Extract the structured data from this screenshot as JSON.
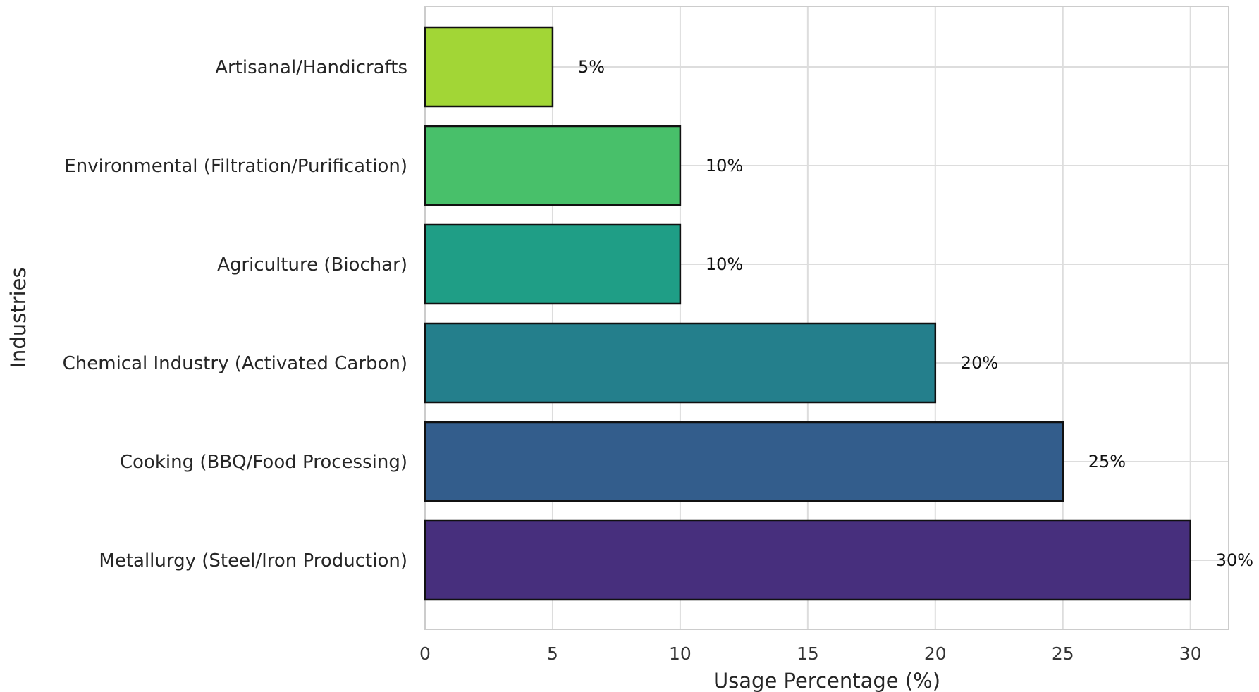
{
  "chart_data": {
    "type": "bar",
    "orientation": "horizontal",
    "categories": [
      "Metallurgy (Steel/Iron Production)",
      "Cooking (BBQ/Food Processing)",
      "Chemical Industry (Activated Carbon)",
      "Agriculture (Biochar)",
      "Environmental (Filtration/Purification)",
      "Artisanal/Handicrafts"
    ],
    "values": [
      30,
      25,
      20,
      10,
      10,
      5
    ],
    "value_labels": [
      "30%",
      "25%",
      "20%",
      "10%",
      "10%",
      "5%"
    ],
    "colors": [
      "#472f7d",
      "#335d8c",
      "#247f8c",
      "#1f9e86",
      "#48c06a",
      "#a2d636"
    ],
    "xlabel": "Usage Percentage (%)",
    "ylabel": "Industries",
    "xlim": [
      0,
      31.5
    ],
    "xticks": [
      0,
      5,
      10,
      15,
      20,
      25,
      30
    ],
    "xtick_labels": [
      "0",
      "5",
      "10",
      "15",
      "20",
      "25",
      "30"
    ],
    "grid": true
  }
}
